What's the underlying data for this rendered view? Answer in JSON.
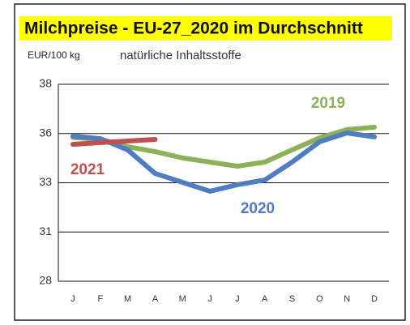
{
  "chart_data": {
    "type": "line",
    "title": "Milchpreise - EU-27_2020 im Durchschnitt",
    "y_label": "EUR/100 kg",
    "subtitle": "natürliche Inhaltsstoffe",
    "categories": [
      "J",
      "F",
      "M",
      "A",
      "M",
      "J",
      "J",
      "A",
      "S",
      "O",
      "N",
      "D"
    ],
    "series": [
      {
        "name": "2019",
        "color": "#8db05a",
        "values": [
          35.3,
          35.2,
          34.83,
          34.58,
          34.26,
          34.05,
          33.84,
          34.05,
          34.67,
          35.28,
          35.7,
          35.82
        ]
      },
      {
        "name": "2020",
        "color": "#4f7dbf",
        "values": [
          35.37,
          35.24,
          34.67,
          33.47,
          33.02,
          32.57,
          32.9,
          33.14,
          34.05,
          35.08,
          35.53,
          35.33
        ]
      },
      {
        "name": "2021",
        "color": "#c0504d",
        "values": [
          34.95,
          35.04,
          35.12,
          35.2,
          null,
          null,
          null,
          null,
          null,
          null,
          null,
          null
        ]
      }
    ],
    "ylim": [
      28,
      38
    ],
    "yticks": [
      28,
      {
        "value": 30.5,
        "label": "31"
      },
      33,
      {
        "value": 35.5,
        "label": "36"
      },
      38
    ],
    "grid": true
  }
}
